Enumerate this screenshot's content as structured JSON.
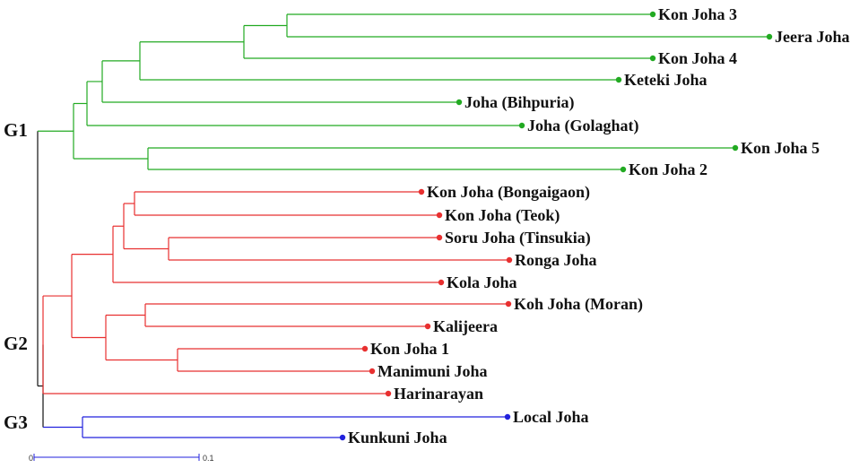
{
  "colors": {
    "G1": "#22aa22",
    "G2": "#e83030",
    "G3": "#2222dd",
    "root": "#111111",
    "scale": "#2222dd"
  },
  "groups": [
    {
      "id": "G1",
      "label": "G1"
    },
    {
      "id": "G2",
      "label": "G2"
    },
    {
      "id": "G3",
      "label": "G3"
    }
  ],
  "leaves": [
    {
      "id": "kon-joha-3",
      "label": "Kon Joha 3",
      "group": "G1"
    },
    {
      "id": "jeera-joha",
      "label": "Jeera Joha",
      "group": "G1"
    },
    {
      "id": "kon-joha-4",
      "label": "Kon Joha 4",
      "group": "G1"
    },
    {
      "id": "keteki-joha",
      "label": "Keteki Joha",
      "group": "G1"
    },
    {
      "id": "joha-bihpuria",
      "label": "Joha (Bihpuria)",
      "group": "G1"
    },
    {
      "id": "joha-golaghat",
      "label": "Joha (Golaghat)",
      "group": "G1"
    },
    {
      "id": "kon-joha-5",
      "label": "Kon Joha 5",
      "group": "G1"
    },
    {
      "id": "kon-joha-2",
      "label": "Kon Joha 2",
      "group": "G1"
    },
    {
      "id": "kon-joha-bongaigaon",
      "label": "Kon Joha (Bongaigaon)",
      "group": "G2"
    },
    {
      "id": "kon-joha-teok",
      "label": "Kon Joha (Teok)",
      "group": "G2"
    },
    {
      "id": "soru-joha-tinsukia",
      "label": "Soru Joha (Tinsukia)",
      "group": "G2"
    },
    {
      "id": "ronga-joha",
      "label": "Ronga Joha",
      "group": "G2"
    },
    {
      "id": "kola-joha",
      "label": "Kola Joha",
      "group": "G2"
    },
    {
      "id": "koh-joha-moran",
      "label": "Koh Joha (Moran)",
      "group": "G2"
    },
    {
      "id": "kalijeera",
      "label": "Kalijeera",
      "group": "G2"
    },
    {
      "id": "kon-joha-1",
      "label": "Kon Joha 1",
      "group": "G2"
    },
    {
      "id": "manimuni-joha",
      "label": "Manimuni Joha",
      "group": "G2"
    },
    {
      "id": "harinarayan",
      "label": "Harinarayan",
      "group": "G2"
    },
    {
      "id": "local-joha",
      "label": "Local Joha",
      "group": "G3"
    },
    {
      "id": "kunkuni-joha",
      "label": "Kunkuni Joha",
      "group": "G3"
    }
  ],
  "scale_bar": {
    "start_label": "0",
    "end_label": "0.1",
    "length": 0.1
  }
}
